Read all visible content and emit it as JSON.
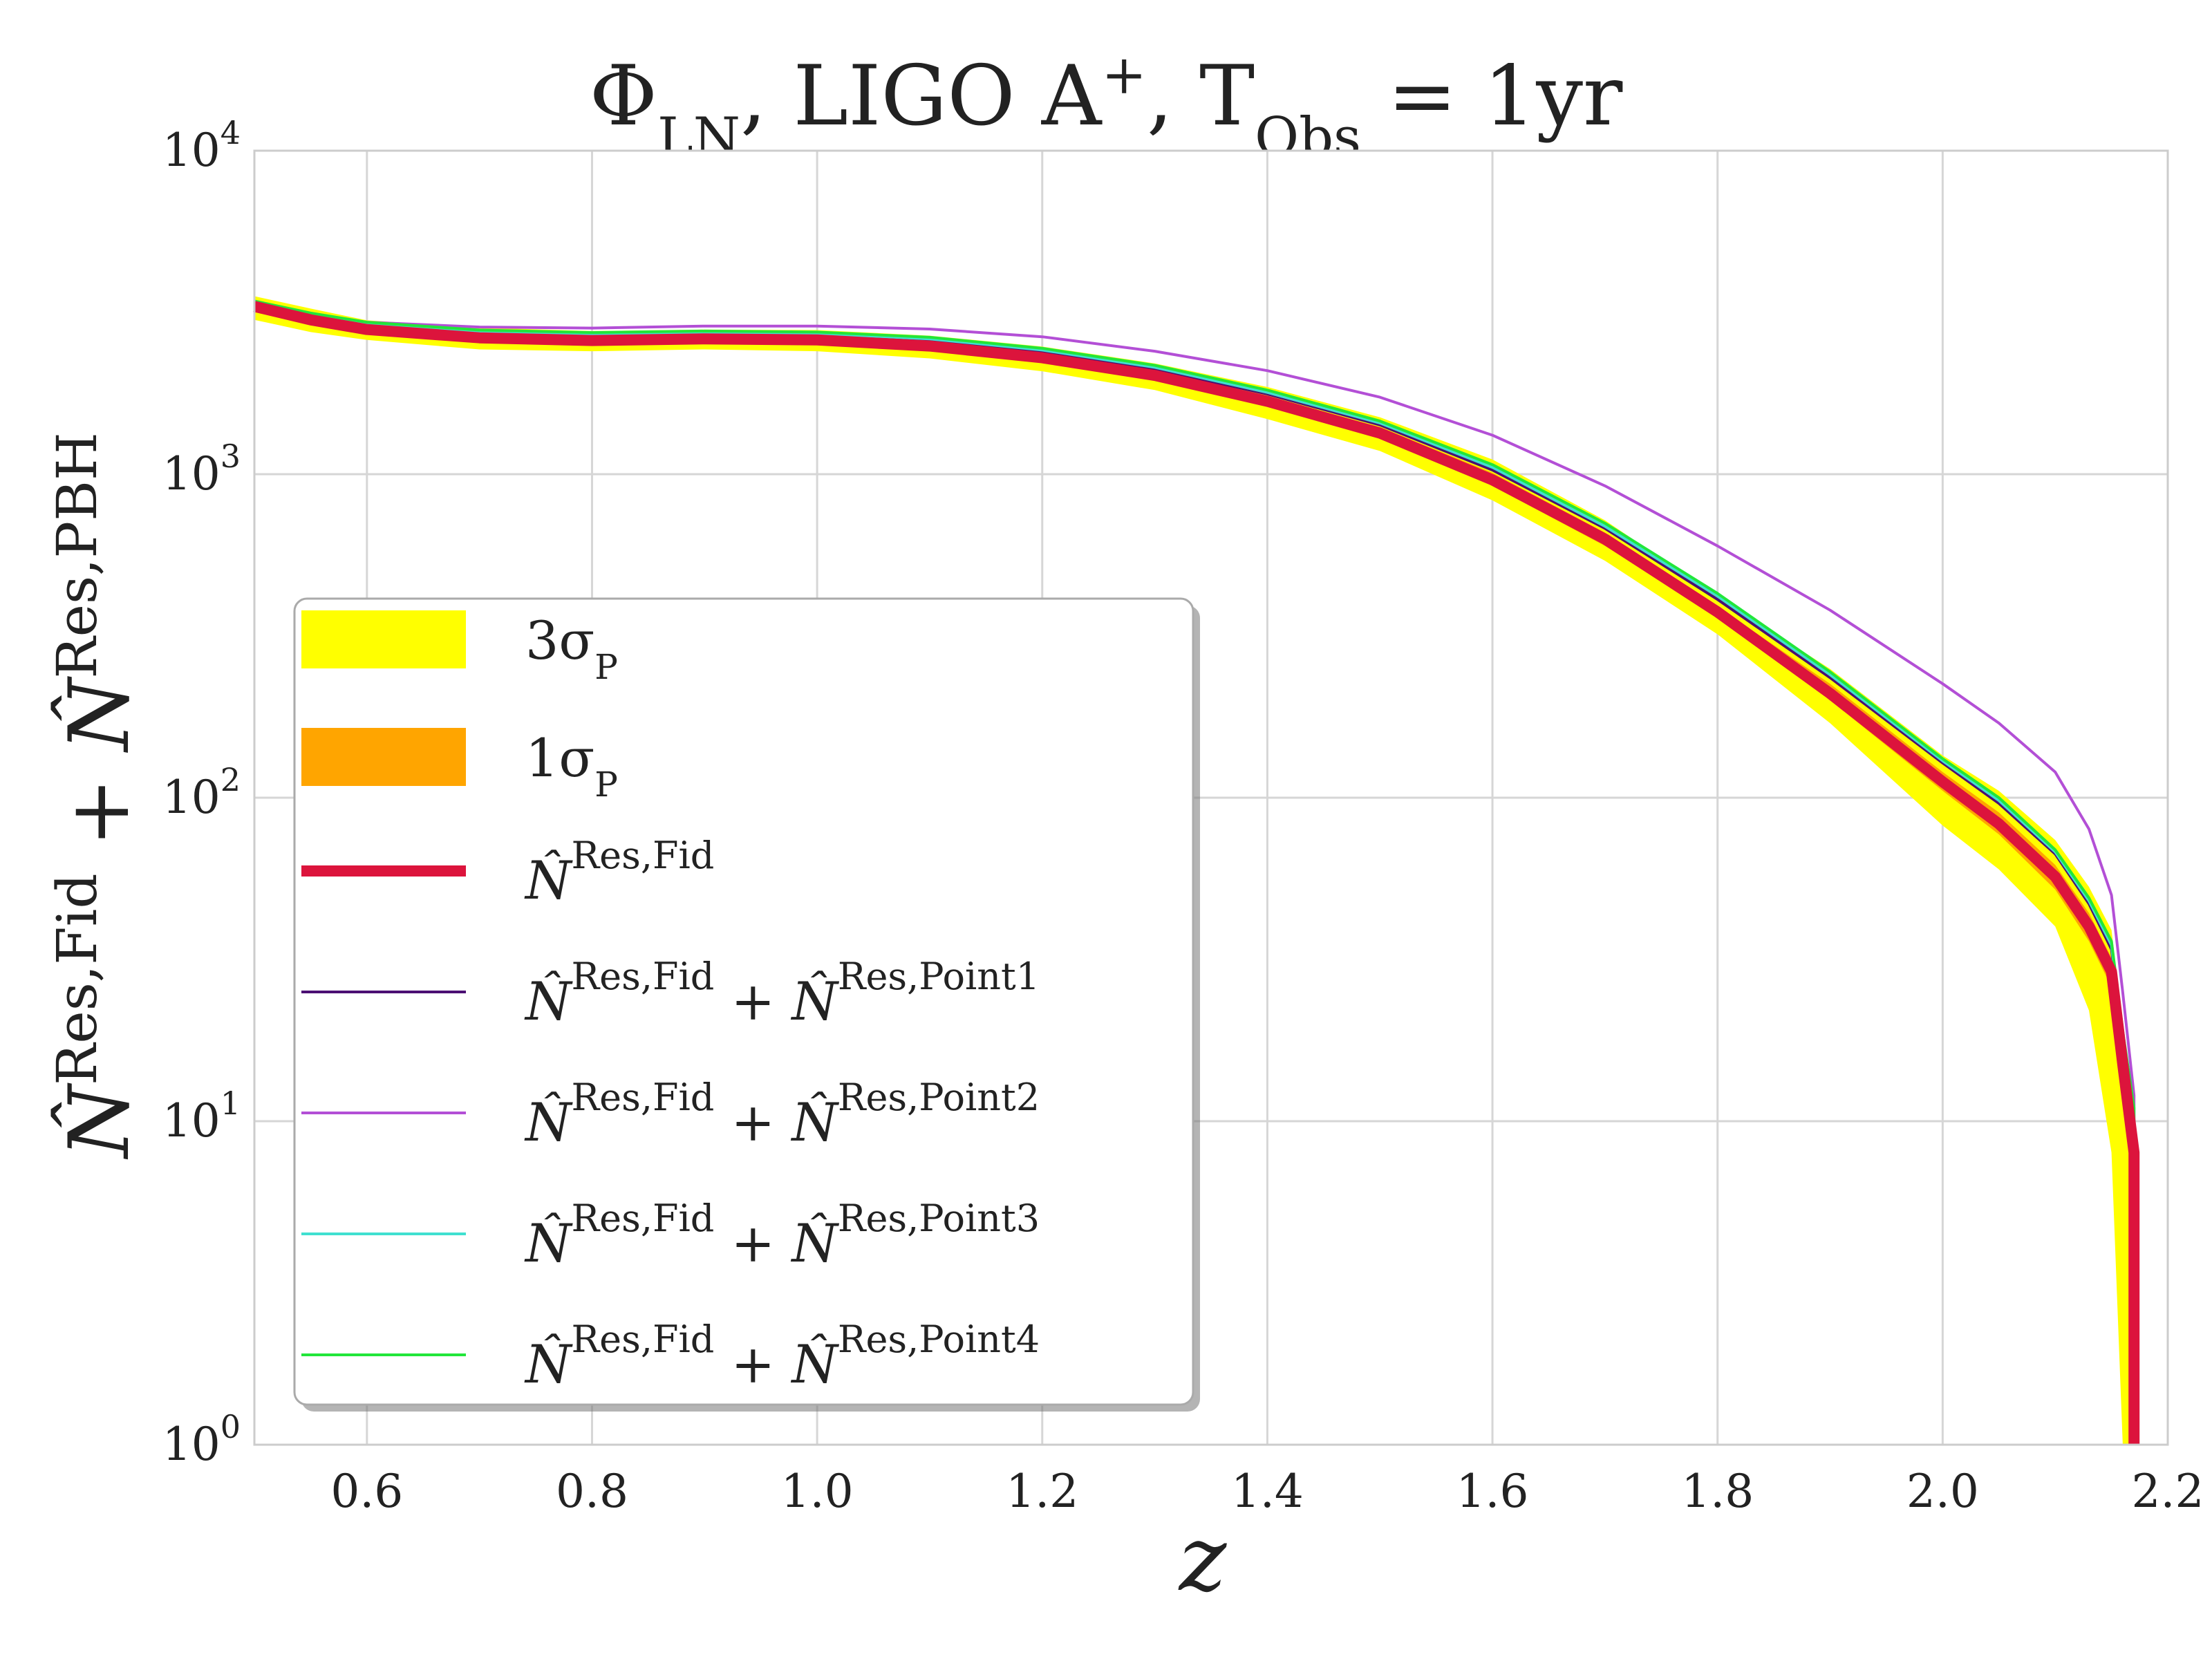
{
  "chart_data": {
    "type": "line",
    "title": {
      "phi": "Φ",
      "phi_sub": "LN",
      "sep1": ", ",
      "ligo": "LIGO A",
      "ligo_sup": "+",
      "sep2": ", ",
      "t": "T",
      "t_sub": "Obs",
      "eq": " = 1yr"
    },
    "xlabel": "z",
    "ylabel": {
      "part1": "N̂",
      "part1_sup": "Res,Fid",
      "plus": " + ",
      "part2": "N̂",
      "part2_sup": "Res,PBH"
    },
    "xlim": [
      0.5,
      2.2
    ],
    "ylim": [
      1,
      10000
    ],
    "yscale": "log",
    "grid": true,
    "legend_position": "center-left",
    "xticks": [
      "0.6",
      "0.8",
      "1.0",
      "1.2",
      "1.4",
      "1.6",
      "1.8",
      "2.0",
      "2.2"
    ],
    "xtick_values": [
      0.6,
      0.8,
      1.0,
      1.2,
      1.4,
      1.6,
      1.8,
      2.0,
      2.2
    ],
    "yticks": [
      {
        "base": "10",
        "exp": "0",
        "value": 1
      },
      {
        "base": "10",
        "exp": "1",
        "value": 10
      },
      {
        "base": "10",
        "exp": "2",
        "value": 100
      },
      {
        "base": "10",
        "exp": "3",
        "value": 1000
      },
      {
        "base": "10",
        "exp": "4",
        "value": 10000
      }
    ],
    "bands": [
      {
        "name": "3σ_P",
        "color": "#ffff00",
        "x": [
          0.5,
          0.55,
          0.6,
          0.7,
          0.8,
          0.9,
          1.0,
          1.1,
          1.2,
          1.3,
          1.4,
          1.5,
          1.6,
          1.7,
          1.8,
          1.9,
          2.0,
          2.05,
          2.1,
          2.13,
          2.15,
          2.16,
          2.17
        ],
        "lower": [
          3000,
          2750,
          2600,
          2430,
          2400,
          2430,
          2400,
          2280,
          2080,
          1820,
          1480,
          1180,
          830,
          540,
          320,
          170,
          82,
          60,
          40,
          22,
          8,
          1,
          1
        ],
        "upper": [
          3550,
          3250,
          2990,
          2840,
          2770,
          2800,
          2790,
          2680,
          2480,
          2200,
          1860,
          1500,
          1110,
          720,
          420,
          250,
          135,
          105,
          74,
          53,
          39,
          20,
          10
        ]
      },
      {
        "name": "1σ_P",
        "color": "#ffa500",
        "x": [
          0.5,
          0.55,
          0.6,
          0.7,
          0.8,
          0.9,
          1.0,
          1.1,
          1.2,
          1.3,
          1.4,
          1.5,
          1.6,
          1.7,
          1.8,
          1.9,
          2.0,
          2.05,
          2.1,
          2.13,
          2.15,
          2.16,
          2.17
        ],
        "lower": [
          3190,
          2950,
          2740,
          2580,
          2530,
          2560,
          2530,
          2420,
          2230,
          1960,
          1620,
          1290,
          920,
          600,
          360,
          200,
          105,
          77,
          52,
          36,
          26,
          14,
          7
        ],
        "upper": [
          3400,
          3080,
          2860,
          2700,
          2640,
          2670,
          2660,
          2550,
          2350,
          2080,
          1730,
          1400,
          1010,
          660,
          390,
          225,
          120,
          90,
          62,
          44,
          32,
          17,
          9
        ]
      }
    ],
    "series": [
      {
        "name": "N̂^{Res,Fid}",
        "color": "#dc143c",
        "x": [
          0.5,
          0.55,
          0.6,
          0.7,
          0.8,
          0.9,
          1.0,
          1.1,
          1.2,
          1.3,
          1.4,
          1.5,
          1.6,
          1.7,
          1.8,
          1.9,
          2.0,
          2.05,
          2.1,
          2.13,
          2.15,
          2.16,
          2.17
        ],
        "values": [
          3300,
          3000,
          2800,
          2640,
          2590,
          2620,
          2600,
          2490,
          2290,
          2020,
          1680,
          1340,
          960,
          630,
          375,
          210,
          112,
          83,
          57,
          40,
          29,
          15,
          8
        ]
      },
      {
        "name": "N̂^{Res,Fid} + N̂^{Res,Point1}",
        "color": "#4b0f73",
        "x": [
          0.5,
          0.55,
          0.6,
          0.7,
          0.8,
          0.9,
          1.0,
          1.1,
          1.2,
          1.3,
          1.4,
          1.5,
          1.6,
          1.7,
          1.8,
          1.9,
          2.0,
          2.05,
          2.1,
          2.13,
          2.15,
          2.16,
          2.17
        ],
        "values": [
          3360,
          3080,
          2880,
          2720,
          2670,
          2700,
          2680,
          2580,
          2390,
          2110,
          1770,
          1420,
          1030,
          680,
          410,
          235,
          128,
          96,
          67,
          47,
          34,
          18,
          10
        ]
      },
      {
        "name": "N̂^{Res,Fid} + N̂^{Res,Point2}",
        "color": "#b34fd6",
        "x": [
          0.5,
          0.55,
          0.6,
          0.7,
          0.8,
          0.9,
          1.0,
          1.1,
          1.2,
          1.3,
          1.4,
          1.5,
          1.6,
          1.7,
          1.8,
          1.9,
          2.0,
          2.05,
          2.1,
          2.13,
          2.15,
          2.16,
          2.17
        ],
        "values": [
          3350,
          3100,
          2950,
          2850,
          2830,
          2870,
          2870,
          2810,
          2660,
          2400,
          2090,
          1730,
          1320,
          920,
          600,
          380,
          225,
          170,
          120,
          80,
          50,
          25,
          12
        ]
      },
      {
        "name": "N̂^{Res,Fid} + N̂^{Res,Point3}",
        "color": "#40e0d0",
        "x": [
          0.5,
          0.55,
          0.6,
          0.7,
          0.8,
          0.9,
          1.0,
          1.1,
          1.2,
          1.3,
          1.4,
          1.5,
          1.6,
          1.7,
          1.8,
          1.9,
          2.0,
          2.05,
          2.1,
          2.13,
          2.15,
          2.16,
          2.17
        ],
        "values": [
          3400,
          3120,
          2920,
          2760,
          2710,
          2740,
          2720,
          2620,
          2420,
          2140,
          1790,
          1440,
          1050,
          690,
          420,
          240,
          130,
          98,
          68,
          48,
          35,
          18,
          10
        ]
      },
      {
        "name": "N̂^{Res,Fid} + N̂^{Res,Point4}",
        "color": "#22e63a",
        "x": [
          0.5,
          0.55,
          0.6,
          0.7,
          0.8,
          0.9,
          1.0,
          1.1,
          1.2,
          1.3,
          1.4,
          1.5,
          1.6,
          1.7,
          1.8,
          1.9,
          2.0,
          2.05,
          2.1,
          2.13,
          2.15,
          2.16,
          2.17
        ],
        "values": [
          3430,
          3150,
          2950,
          2790,
          2740,
          2770,
          2750,
          2650,
          2450,
          2170,
          1820,
          1460,
          1070,
          705,
          428,
          245,
          132,
          100,
          69,
          49,
          36,
          19,
          11
        ]
      }
    ],
    "legend": [
      {
        "kind": "patch",
        "color": "#ffff00",
        "main": "3σ",
        "sub": "P"
      },
      {
        "kind": "patch",
        "color": "#ffa500",
        "main": "1σ",
        "sub": "P"
      },
      {
        "kind": "line",
        "color": "#dc143c",
        "thick": true,
        "n1": "N̂",
        "s1": "Res,Fid",
        "plus": "",
        "n2": "",
        "s2": ""
      },
      {
        "kind": "line",
        "color": "#4b0f73",
        "thick": false,
        "n1": "N̂",
        "s1": "Res,Fid",
        "plus": " + ",
        "n2": "N̂",
        "s2": "Res,Point1"
      },
      {
        "kind": "line",
        "color": "#b34fd6",
        "thick": false,
        "n1": "N̂",
        "s1": "Res,Fid",
        "plus": " + ",
        "n2": "N̂",
        "s2": "Res,Point2"
      },
      {
        "kind": "line",
        "color": "#40e0d0",
        "thick": false,
        "n1": "N̂",
        "s1": "Res,Fid",
        "plus": " + ",
        "n2": "N̂",
        "s2": "Res,Point3"
      },
      {
        "kind": "line",
        "color": "#22e63a",
        "thick": false,
        "n1": "N̂",
        "s1": "Res,Fid",
        "plus": " + ",
        "n2": "N̂",
        "s2": "Res,Point4"
      }
    ]
  }
}
